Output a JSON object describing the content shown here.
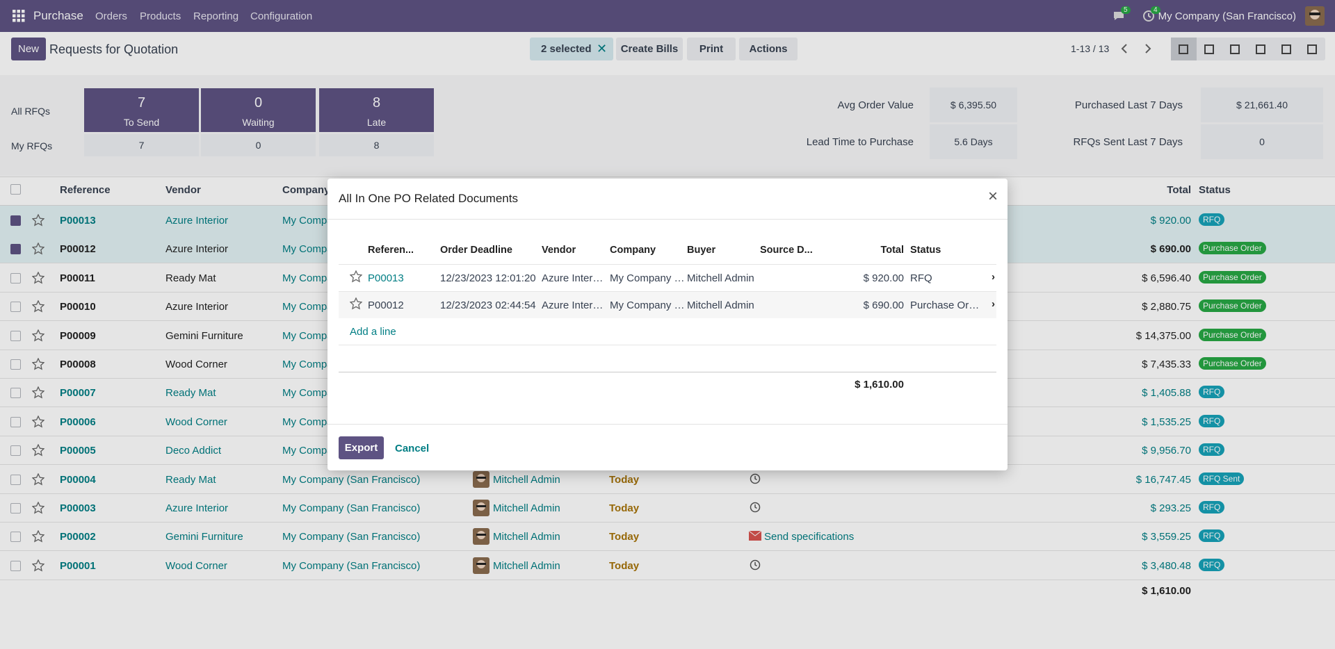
{
  "navbar": {
    "app": "Purchase",
    "menu": [
      "Orders",
      "Products",
      "Reporting",
      "Configuration"
    ],
    "messages_badge": "5",
    "activities_badge": "4",
    "company": "My Company (San Francisco)"
  },
  "control_panel": {
    "new": "New",
    "title": "Requests for Quotation",
    "selected": "2 selected",
    "buttons": [
      "Create Bills",
      "Print",
      "Actions"
    ],
    "pager": "1-13 / 13"
  },
  "dashboard": {
    "row_labels": [
      "All RFQs",
      "My RFQs"
    ],
    "tiles": [
      {
        "value": "7",
        "label": "To Send",
        "mine": "7"
      },
      {
        "value": "0",
        "label": "Waiting",
        "mine": "0"
      },
      {
        "value": "8",
        "label": "Late",
        "mine": "8"
      }
    ],
    "stats": [
      {
        "label": "Avg Order Value",
        "value": "$ 6,395.50"
      },
      {
        "label": "Purchased Last 7 Days",
        "value": "$ 21,661.40"
      },
      {
        "label": "Lead Time to Purchase",
        "value": "5.6 Days"
      },
      {
        "label": "RFQs Sent Last 7 Days",
        "value": "0"
      }
    ]
  },
  "table": {
    "headers": {
      "reference": "Reference",
      "vendor": "Vendor",
      "company": "Company",
      "total": "Total",
      "status": "Status"
    },
    "rows": [
      {
        "ref": "P00013",
        "vendor": "Azure Interior",
        "company": "My Company (San Francisco)",
        "total": "$ 920.00",
        "status": "RFQ",
        "checked": true,
        "link": true,
        "badge": "#17a2b8"
      },
      {
        "ref": "P00012",
        "vendor": "Azure Interior",
        "company": "My Company (San Francisco)",
        "total": "$ 690.00",
        "status": "Purchase Order",
        "checked": true,
        "link": false,
        "badge": "#28a745"
      },
      {
        "ref": "P00011",
        "vendor": "Ready Mat",
        "company": "My Company (San Francisco)",
        "total": "$ 6,596.40",
        "status": "Purchase Order",
        "checked": false,
        "link": false,
        "badge": "#28a745"
      },
      {
        "ref": "P00010",
        "vendor": "Azure Interior",
        "company": "My Company (San Francisco)",
        "total": "$ 2,880.75",
        "status": "Purchase Order",
        "checked": false,
        "link": false,
        "badge": "#28a745"
      },
      {
        "ref": "P00009",
        "vendor": "Gemini Furniture",
        "company": "My Company (San Francisco)",
        "total": "$ 14,375.00",
        "status": "Purchase Order",
        "checked": false,
        "link": false,
        "badge": "#28a745"
      },
      {
        "ref": "P00008",
        "vendor": "Wood Corner",
        "company": "My Company (San Francisco)",
        "total": "$ 7,435.33",
        "status": "Purchase Order",
        "checked": false,
        "link": false,
        "badge": "#28a745"
      },
      {
        "ref": "P00007",
        "vendor": "Ready Mat",
        "company": "My Company (San Francisco)",
        "total": "$ 1,405.88",
        "status": "RFQ",
        "checked": false,
        "link": true,
        "badge": "#17a2b8"
      },
      {
        "ref": "P00006",
        "vendor": "Wood Corner",
        "company": "My Company (San Francisco)",
        "total": "$ 1,535.25",
        "status": "RFQ",
        "checked": false,
        "link": true,
        "badge": "#17a2b8"
      },
      {
        "ref": "P00005",
        "vendor": "Deco Addict",
        "company": "My Company (San Francisco)",
        "total": "$ 9,956.70",
        "status": "RFQ",
        "checked": false,
        "link": true,
        "badge": "#17a2b8"
      },
      {
        "ref": "P00004",
        "vendor": "Ready Mat",
        "company": "My Company (San Francisco)",
        "buyer": "Mitchell Admin",
        "deadline": "Today",
        "total": "$ 16,747.45",
        "status": "RFQ Sent",
        "checked": false,
        "link": true,
        "badge": "#17a2b8"
      },
      {
        "ref": "P00003",
        "vendor": "Azure Interior",
        "company": "My Company (San Francisco)",
        "buyer": "Mitchell Admin",
        "deadline": "Today",
        "total": "$ 293.25",
        "status": "RFQ",
        "checked": false,
        "link": true,
        "badge": "#17a2b8"
      },
      {
        "ref": "P00002",
        "vendor": "Gemini Furniture",
        "company": "My Company (San Francisco)",
        "buyer": "Mitchell Admin",
        "deadline": "Today",
        "activity": "Send specifications",
        "total": "$ 3,559.25",
        "status": "RFQ",
        "checked": false,
        "link": true,
        "badge": "#17a2b8"
      },
      {
        "ref": "P00001",
        "vendor": "Wood Corner",
        "company": "My Company (San Francisco)",
        "buyer": "Mitchell Admin",
        "deadline": "Today",
        "total": "$ 3,480.48",
        "status": "RFQ",
        "checked": false,
        "link": true,
        "badge": "#17a2b8"
      }
    ],
    "footer_total": "$ 1,610.00"
  },
  "dialog": {
    "title": "All In One PO Related Documents",
    "columns": [
      "Referen...",
      "Order Deadline",
      "Vendor",
      "Company",
      "Buyer",
      "Source D...",
      "Total",
      "Status"
    ],
    "rows": [
      {
        "ref": "P00013",
        "deadline": "12/23/2023 12:01:20",
        "vendor": "Azure Inter…",
        "company": "My Company …",
        "buyer": "Mitchell Admin",
        "total": "$ 920.00",
        "status": "RFQ",
        "link": true
      },
      {
        "ref": "P00012",
        "deadline": "12/23/2023 02:44:54",
        "vendor": "Azure Inter…",
        "company": "My Company …",
        "buyer": "Mitchell Admin",
        "total": "$ 690.00",
        "status": "Purchase Or…",
        "link": false
      }
    ],
    "add_line": "Add a line",
    "total": "$ 1,610.00",
    "export": "Export",
    "cancel": "Cancel"
  }
}
